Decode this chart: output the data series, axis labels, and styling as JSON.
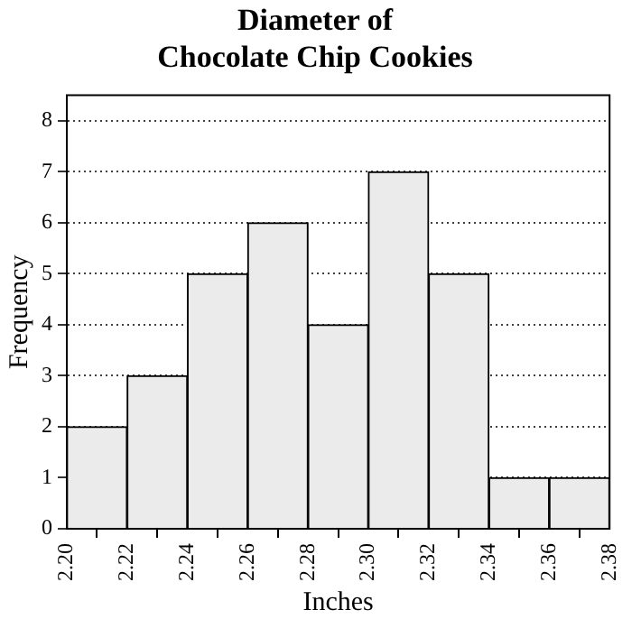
{
  "chart_data": {
    "type": "histogram",
    "title": "Diameter of\nChocolate Chip Cookies",
    "xlabel": "Inches",
    "ylabel": "Frequency",
    "bins": [
      2.2,
      2.22,
      2.24,
      2.26,
      2.28,
      2.3,
      2.32,
      2.34,
      2.36,
      2.38
    ],
    "values": [
      2,
      3,
      5,
      6,
      4,
      7,
      5,
      1,
      1
    ],
    "color": "#ebebeb",
    "xlim": [
      2.2,
      2.38
    ],
    "xticks": [
      {
        "value": 2.2,
        "label": "2.20"
      },
      {
        "value": 2.22,
        "label": "2.22"
      },
      {
        "value": 2.24,
        "label": "2.24"
      },
      {
        "value": 2.26,
        "label": "2.26"
      },
      {
        "value": 2.28,
        "label": "2.28"
      },
      {
        "value": 2.3,
        "label": "2.30"
      },
      {
        "value": 2.32,
        "label": "2.32"
      },
      {
        "value": 2.34,
        "label": "2.34"
      },
      {
        "value": 2.36,
        "label": "2.36"
      },
      {
        "value": 2.38,
        "label": "2.38"
      }
    ],
    "ylim": [
      0,
      8.5
    ],
    "yticks": [
      0,
      1,
      2,
      3,
      4,
      5,
      6,
      7,
      8
    ],
    "grid": "y",
    "legend": false
  }
}
